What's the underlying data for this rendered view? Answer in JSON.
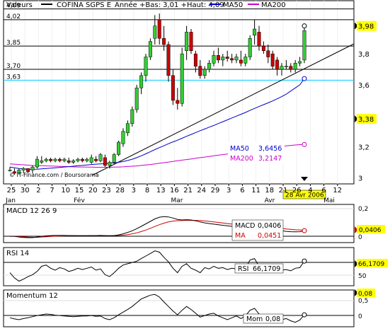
{
  "header": {
    "valeurs_label": "Valeurs",
    "stock_name": "COFINA SGPS E",
    "year_range": "Année +Bas: 3,01 +Haut: 4,09",
    "ma50_legend": "MA50",
    "ma200_legend": "MA200"
  },
  "colors": {
    "up_candle": "#33cc33",
    "down_candle": "#cc0000",
    "ma50": "#0000cc",
    "ma200": "#cc00cc",
    "cyan_line": "#00ccff",
    "highlight_label": "#ffff00",
    "macd_line": "#000000",
    "macd_signal": "#cc0000",
    "text": "#000000"
  },
  "watermark": "© IT-Finance.com / Boursorama",
  "price_levels": [
    {
      "value": "4,09",
      "y": 4.09
    },
    {
      "value": "4,02",
      "y": 4.02
    },
    {
      "value": "3,85",
      "y": 3.85
    },
    {
      "value": "3,70",
      "y": 3.7
    },
    {
      "value": "3,63",
      "y": 3.63,
      "cyan": true
    }
  ],
  "right_axis": [
    "3,8",
    "3,6",
    "3,2",
    "3"
  ],
  "right_highlights": [
    {
      "value": "3,98",
      "price": 3.98
    },
    {
      "value": "3,38",
      "price": 3.38
    }
  ],
  "ma_box": {
    "ma50_label": "MA50",
    "ma50_value": "3,6456",
    "ma200_label": "MA200",
    "ma200_value": "3,2147"
  },
  "date_label": "28 Avr 2006",
  "x_axis": {
    "ticks": [
      "25",
      "30",
      "2",
      "7",
      "10",
      "15",
      "20",
      "23",
      "28",
      "3",
      "8",
      "13",
      "16",
      "21",
      "24",
      "29",
      "3",
      "6",
      "11",
      "18",
      "21",
      "26",
      "4",
      "6",
      "12"
    ],
    "months": [
      "Jan",
      "Fév",
      "Mar",
      "Avr",
      "Mai"
    ]
  },
  "macd_panel": {
    "title": "MACD 12 26 9",
    "macd_label": "MACD",
    "macd_value": "0,0406",
    "ma_label": "MA",
    "ma_value": "0,0451",
    "right_axis": [
      "0,2",
      "0"
    ],
    "highlight": "0,0406"
  },
  "rsi_panel": {
    "title": "RSI 14",
    "label": "RSI",
    "value": "66,1709",
    "right_axis": [
      "50"
    ],
    "highlight": "66,1709"
  },
  "momentum_panel": {
    "title": "Momentum 12",
    "label": "Mom",
    "value": "0,08",
    "right_axis": [
      "0,5",
      "0"
    ],
    "highlight": "0,08"
  },
  "chart_data": {
    "type": "candlestick",
    "title": "COFINA SGPS E",
    "y_unit": "EUR",
    "ylim": [
      2.97,
      4.12
    ],
    "candles": [
      {
        "o": 3.05,
        "h": 3.07,
        "l": 3.04,
        "c": 3.05
      },
      {
        "o": 3.04,
        "h": 3.06,
        "l": 3.02,
        "c": 3.03
      },
      {
        "o": 3.03,
        "h": 3.06,
        "l": 3.02,
        "c": 3.05
      },
      {
        "o": 3.05,
        "h": 3.07,
        "l": 3.03,
        "c": 3.06
      },
      {
        "o": 3.06,
        "h": 3.06,
        "l": 3.03,
        "c": 3.04
      },
      {
        "o": 3.05,
        "h": 3.08,
        "l": 3.03,
        "c": 3.07
      },
      {
        "o": 3.07,
        "h": 3.14,
        "l": 3.06,
        "c": 3.12
      },
      {
        "o": 3.1,
        "h": 3.14,
        "l": 3.09,
        "c": 3.11
      },
      {
        "o": 3.11,
        "h": 3.13,
        "l": 3.1,
        "c": 3.12
      },
      {
        "o": 3.12,
        "h": 3.13,
        "l": 3.1,
        "c": 3.11
      },
      {
        "o": 3.11,
        "h": 3.13,
        "l": 3.1,
        "c": 3.12
      },
      {
        "o": 3.12,
        "h": 3.13,
        "l": 3.1,
        "c": 3.11
      },
      {
        "o": 3.11,
        "h": 3.13,
        "l": 3.1,
        "c": 3.12
      },
      {
        "o": 3.11,
        "h": 3.13,
        "l": 3.09,
        "c": 3.1
      },
      {
        "o": 3.1,
        "h": 3.12,
        "l": 3.09,
        "c": 3.11
      },
      {
        "o": 3.11,
        "h": 3.13,
        "l": 3.1,
        "c": 3.12
      },
      {
        "o": 3.12,
        "h": 3.13,
        "l": 3.1,
        "c": 3.11
      },
      {
        "o": 3.11,
        "h": 3.13,
        "l": 3.1,
        "c": 3.12
      },
      {
        "o": 3.1,
        "h": 3.15,
        "l": 3.09,
        "c": 3.13
      },
      {
        "o": 3.12,
        "h": 3.14,
        "l": 3.1,
        "c": 3.11
      },
      {
        "o": 3.11,
        "h": 3.16,
        "l": 3.1,
        "c": 3.15
      },
      {
        "o": 3.13,
        "h": 3.15,
        "l": 3.07,
        "c": 3.08
      },
      {
        "o": 3.08,
        "h": 3.11,
        "l": 3.06,
        "c": 3.1
      },
      {
        "o": 3.1,
        "h": 3.16,
        "l": 3.09,
        "c": 3.15
      },
      {
        "o": 3.15,
        "h": 3.24,
        "l": 3.14,
        "c": 3.23
      },
      {
        "o": 3.22,
        "h": 3.32,
        "l": 3.2,
        "c": 3.3
      },
      {
        "o": 3.29,
        "h": 3.37,
        "l": 3.27,
        "c": 3.35
      },
      {
        "o": 3.35,
        "h": 3.46,
        "l": 3.33,
        "c": 3.44
      },
      {
        "o": 3.44,
        "h": 3.6,
        "l": 3.42,
        "c": 3.58
      },
      {
        "o": 3.58,
        "h": 3.68,
        "l": 3.54,
        "c": 3.66
      },
      {
        "o": 3.66,
        "h": 3.8,
        "l": 3.62,
        "c": 3.78
      },
      {
        "o": 3.78,
        "h": 3.9,
        "l": 3.76,
        "c": 3.88
      },
      {
        "o": 3.9,
        "h": 4.05,
        "l": 3.86,
        "c": 3.98
      },
      {
        "o": 4.02,
        "h": 4.06,
        "l": 3.86,
        "c": 3.9
      },
      {
        "o": 3.9,
        "h": 3.98,
        "l": 3.82,
        "c": 3.86
      },
      {
        "o": 3.86,
        "h": 3.88,
        "l": 3.62,
        "c": 3.66
      },
      {
        "o": 3.66,
        "h": 3.7,
        "l": 3.47,
        "c": 3.5
      },
      {
        "o": 3.5,
        "h": 3.58,
        "l": 3.44,
        "c": 3.48
      },
      {
        "o": 3.48,
        "h": 3.84,
        "l": 3.46,
        "c": 3.8
      },
      {
        "o": 3.82,
        "h": 3.98,
        "l": 3.76,
        "c": 3.94
      },
      {
        "o": 3.94,
        "h": 3.96,
        "l": 3.8,
        "c": 3.82
      },
      {
        "o": 3.8,
        "h": 3.82,
        "l": 3.68,
        "c": 3.72
      },
      {
        "o": 3.72,
        "h": 3.76,
        "l": 3.64,
        "c": 3.66
      },
      {
        "o": 3.66,
        "h": 3.72,
        "l": 3.64,
        "c": 3.7
      },
      {
        "o": 3.7,
        "h": 3.76,
        "l": 3.68,
        "c": 3.74
      },
      {
        "o": 3.74,
        "h": 3.82,
        "l": 3.72,
        "c": 3.79
      },
      {
        "o": 3.79,
        "h": 3.84,
        "l": 3.74,
        "c": 3.76
      },
      {
        "o": 3.76,
        "h": 3.8,
        "l": 3.72,
        "c": 3.78
      },
      {
        "o": 3.78,
        "h": 3.82,
        "l": 3.75,
        "c": 3.77
      },
      {
        "o": 3.77,
        "h": 3.8,
        "l": 3.74,
        "c": 3.76
      },
      {
        "o": 3.76,
        "h": 3.8,
        "l": 3.74,
        "c": 3.78
      },
      {
        "o": 3.76,
        "h": 3.82,
        "l": 3.72,
        "c": 3.74
      },
      {
        "o": 3.74,
        "h": 3.8,
        "l": 3.72,
        "c": 3.78
      },
      {
        "o": 3.78,
        "h": 3.92,
        "l": 3.76,
        "c": 3.9
      },
      {
        "o": 3.92,
        "h": 4.02,
        "l": 3.86,
        "c": 3.96
      },
      {
        "o": 3.94,
        "h": 3.98,
        "l": 3.82,
        "c": 3.85
      },
      {
        "o": 3.85,
        "h": 3.88,
        "l": 3.8,
        "c": 3.82
      },
      {
        "o": 3.82,
        "h": 3.86,
        "l": 3.74,
        "c": 3.78
      },
      {
        "o": 3.8,
        "h": 3.82,
        "l": 3.7,
        "c": 3.72
      },
      {
        "o": 3.76,
        "h": 3.78,
        "l": 3.66,
        "c": 3.7
      },
      {
        "o": 3.7,
        "h": 3.74,
        "l": 3.66,
        "c": 3.72
      },
      {
        "o": 3.72,
        "h": 3.76,
        "l": 3.7,
        "c": 3.72
      },
      {
        "o": 3.72,
        "h": 3.74,
        "l": 3.68,
        "c": 3.7
      },
      {
        "o": 3.7,
        "h": 3.76,
        "l": 3.68,
        "c": 3.74
      },
      {
        "o": 3.74,
        "h": 3.78,
        "l": 3.72,
        "c": 3.75
      },
      {
        "o": 3.76,
        "h": 3.98,
        "l": 3.74,
        "c": 3.95
      }
    ],
    "ma50": [
      3.07,
      3.065,
      3.06,
      3.058,
      3.056,
      3.055,
      3.056,
      3.058,
      3.06,
      3.062,
      3.065,
      3.067,
      3.07,
      3.072,
      3.075,
      3.078,
      3.08,
      3.083,
      3.086,
      3.088,
      3.09,
      3.092,
      3.094,
      3.097,
      3.1,
      3.105,
      3.112,
      3.12,
      3.13,
      3.142,
      3.155,
      3.168,
      3.182,
      3.195,
      3.207,
      3.22,
      3.232,
      3.243,
      3.255,
      3.268,
      3.28,
      3.292,
      3.304,
      3.315,
      3.327,
      3.338,
      3.35,
      3.362,
      3.374,
      3.386,
      3.398,
      3.41,
      3.422,
      3.435,
      3.448,
      3.46,
      3.472,
      3.484,
      3.496,
      3.51,
      3.524,
      3.54,
      3.56,
      3.58,
      3.6,
      3.64
    ],
    "ma200": [
      3.09,
      3.088,
      3.086,
      3.084,
      3.082,
      3.08,
      3.079,
      3.078,
      3.077,
      3.076,
      3.075,
      3.074,
      3.073,
      3.072,
      3.071,
      3.07,
      3.07,
      3.069,
      3.069,
      3.068,
      3.068,
      3.068,
      3.068,
      3.069,
      3.07,
      3.071,
      3.073,
      3.075,
      3.077,
      3.08,
      3.083,
      3.086,
      3.09,
      3.094,
      3.098,
      3.102,
      3.106,
      3.11,
      3.114,
      3.118,
      3.122,
      3.126,
      3.13,
      3.134,
      3.138,
      3.142,
      3.146,
      3.15,
      3.154,
      3.158,
      3.162,
      3.166,
      3.17,
      3.174,
      3.178,
      3.182,
      3.186,
      3.19,
      3.194,
      3.198,
      3.202,
      3.206,
      3.209,
      3.212,
      3.214,
      3.215
    ],
    "macd": [
      0.0,
      0.0,
      -0.005,
      -0.008,
      -0.01,
      -0.01,
      -0.005,
      0.0,
      0.003,
      0.005,
      0.006,
      0.006,
      0.006,
      0.005,
      0.005,
      0.004,
      0.004,
      0.004,
      0.005,
      0.005,
      0.006,
      0.004,
      0.003,
      0.005,
      0.01,
      0.018,
      0.028,
      0.04,
      0.055,
      0.072,
      0.09,
      0.108,
      0.126,
      0.138,
      0.142,
      0.14,
      0.132,
      0.122,
      0.118,
      0.12,
      0.118,
      0.112,
      0.104,
      0.097,
      0.092,
      0.088,
      0.084,
      0.08,
      0.076,
      0.072,
      0.068,
      0.064,
      0.062,
      0.066,
      0.07,
      0.068,
      0.064,
      0.058,
      0.052,
      0.045,
      0.04,
      0.036,
      0.033,
      0.032,
      0.033,
      0.0406
    ],
    "macd_signal": [
      0.0,
      0.0,
      -0.002,
      -0.004,
      -0.006,
      -0.007,
      -0.007,
      -0.005,
      -0.003,
      -0.001,
      0.001,
      0.002,
      0.003,
      0.004,
      0.004,
      0.004,
      0.004,
      0.004,
      0.004,
      0.004,
      0.005,
      0.005,
      0.005,
      0.005,
      0.006,
      0.008,
      0.012,
      0.018,
      0.025,
      0.034,
      0.045,
      0.058,
      0.071,
      0.084,
      0.095,
      0.104,
      0.11,
      0.113,
      0.114,
      0.115,
      0.115,
      0.115,
      0.114,
      0.111,
      0.108,
      0.104,
      0.1,
      0.096,
      0.092,
      0.088,
      0.084,
      0.08,
      0.077,
      0.075,
      0.074,
      0.073,
      0.071,
      0.068,
      0.065,
      0.061,
      0.057,
      0.053,
      0.05,
      0.047,
      0.046,
      0.0451
    ],
    "rsi": [
      48,
      40,
      35,
      38,
      42,
      45,
      50,
      58,
      60,
      55,
      52,
      56,
      54,
      50,
      52,
      55,
      53,
      55,
      57,
      52,
      54,
      45,
      42,
      48,
      55,
      60,
      62,
      64,
      66,
      70,
      74,
      78,
      82,
      80,
      72,
      65,
      55,
      48,
      58,
      62,
      55,
      52,
      48,
      56,
      54,
      58,
      55,
      56,
      53,
      55,
      54,
      50,
      55,
      68,
      70,
      58,
      55,
      52,
      50,
      48,
      52,
      53,
      51,
      55,
      56,
      66.17
    ],
    "momentum": [
      0.0,
      -0.03,
      -0.05,
      -0.02,
      0.0,
      0.03,
      0.06,
      0.08,
      0.1,
      0.09,
      0.07,
      0.06,
      0.05,
      0.04,
      0.03,
      0.04,
      0.05,
      0.05,
      0.06,
      0.04,
      0.05,
      -0.02,
      -0.05,
      0.0,
      0.08,
      0.15,
      0.22,
      0.3,
      0.4,
      0.5,
      0.55,
      0.6,
      0.62,
      0.55,
      0.42,
      0.3,
      0.18,
      0.08,
      0.2,
      0.3,
      0.22,
      0.12,
      0.02,
      0.06,
      0.1,
      0.12,
      0.05,
      0.0,
      -0.05,
      0.0,
      0.05,
      -0.02,
      0.05,
      0.2,
      0.25,
      0.1,
      0.0,
      -0.08,
      -0.12,
      -0.1,
      -0.05,
      -0.02,
      -0.08,
      -0.12,
      -0.06,
      0.08
    ]
  }
}
